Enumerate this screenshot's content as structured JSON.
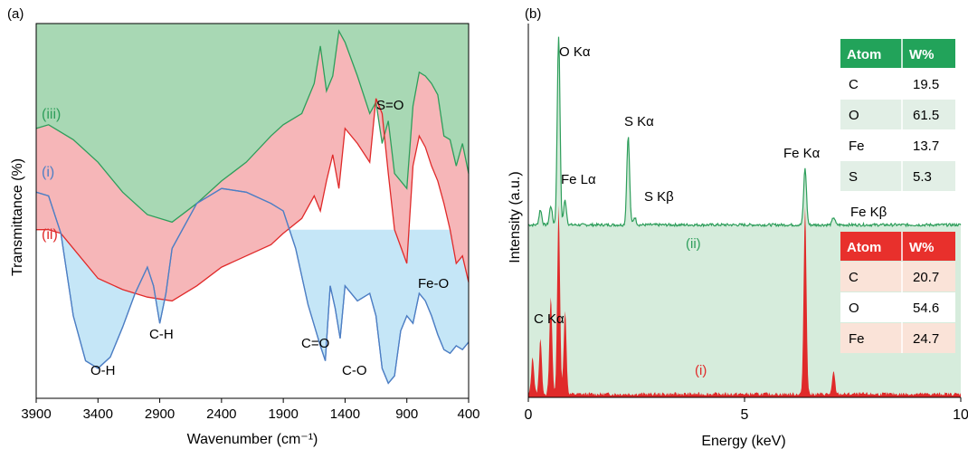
{
  "panel_a": {
    "label": "(a)",
    "xlabel": "Wavenumber (cm⁻¹)",
    "ylabel": "Transmittance (%)",
    "x_ticks": [
      "3900",
      "3400",
      "2900",
      "2400",
      "1900",
      "1400",
      "900",
      "400"
    ],
    "series_labels": [
      "(iii)",
      "(i)",
      "(ii)"
    ],
    "series_colors": [
      "#2e9e5b",
      "#4e7fc4",
      "#e02a2a"
    ],
    "annotations": [
      "S=O",
      "Fe-O",
      "C-H",
      "O-H",
      "C=O",
      "C-O"
    ]
  },
  "panel_b": {
    "label": "(b)",
    "xlabel": "Energy (keV)",
    "ylabel": "Intensity (a.u.)",
    "x_ticks": [
      "0",
      "5",
      "10"
    ],
    "peak_labels": [
      "O Kα",
      "Fe Lα",
      "S Kα",
      "S Kβ",
      "Fe Kα",
      "Fe Kβ",
      "C Kα"
    ],
    "series_labels": [
      "(ii)",
      "(i)"
    ],
    "table_ii": {
      "header": [
        "Atom",
        "W%"
      ],
      "rows": [
        [
          "C",
          "19.5"
        ],
        [
          "O",
          "61.5"
        ],
        [
          "Fe",
          "13.7"
        ],
        [
          "S",
          "5.3"
        ]
      ]
    },
    "table_i": {
      "header": [
        "Atom",
        "W%"
      ],
      "rows": [
        [
          "C",
          "20.7"
        ],
        [
          "O",
          "54.6"
        ],
        [
          "Fe",
          "24.7"
        ]
      ]
    }
  },
  "chart_data": [
    {
      "type": "area",
      "xlabel": "Wavenumber (cm⁻¹)",
      "ylabel": "Transmittance (%)",
      "xlim": [
        3900,
        400
      ],
      "x_reversed": true,
      "series": [
        {
          "name": "(iii)",
          "color": "#2e9e5b",
          "x": [
            3900,
            3800,
            3600,
            3400,
            3200,
            3000,
            2800,
            2600,
            2400,
            2200,
            2000,
            1900,
            1750,
            1650,
            1600,
            1550,
            1500,
            1450,
            1400,
            1300,
            1200,
            1150,
            1100,
            1050,
            1000,
            900,
            850,
            800,
            750,
            700,
            650,
            600,
            550,
            500,
            450,
            400
          ],
          "y": [
            0.72,
            0.73,
            0.69,
            0.63,
            0.55,
            0.49,
            0.47,
            0.52,
            0.58,
            0.63,
            0.7,
            0.73,
            0.76,
            0.84,
            0.94,
            0.82,
            0.86,
            0.98,
            0.95,
            0.86,
            0.76,
            0.79,
            0.68,
            0.74,
            0.6,
            0.56,
            0.78,
            0.87,
            0.86,
            0.84,
            0.81,
            0.7,
            0.69,
            0.62,
            0.68,
            0.6
          ]
        },
        {
          "name": "(i)",
          "color": "#4e7fc4",
          "x": [
            3900,
            3800,
            3700,
            3600,
            3500,
            3400,
            3300,
            3200,
            3100,
            3000,
            2950,
            2900,
            2850,
            2800,
            2600,
            2400,
            2200,
            2000,
            1900,
            1800,
            1700,
            1600,
            1560,
            1520,
            1480,
            1440,
            1400,
            1300,
            1200,
            1150,
            1100,
            1050,
            1000,
            950,
            900,
            850,
            800,
            750,
            700,
            650,
            600,
            550,
            500,
            450,
            400
          ],
          "y": [
            0.55,
            0.54,
            0.44,
            0.22,
            0.1,
            0.08,
            0.11,
            0.19,
            0.28,
            0.35,
            0.3,
            0.2,
            0.28,
            0.4,
            0.52,
            0.56,
            0.55,
            0.52,
            0.5,
            0.4,
            0.25,
            0.14,
            0.1,
            0.3,
            0.24,
            0.16,
            0.3,
            0.26,
            0.28,
            0.22,
            0.08,
            0.04,
            0.06,
            0.18,
            0.22,
            0.2,
            0.28,
            0.26,
            0.22,
            0.17,
            0.13,
            0.12,
            0.14,
            0.13,
            0.15
          ]
        },
        {
          "name": "(ii)",
          "color": "#e02a2a",
          "x": [
            3900,
            3800,
            3700,
            3600,
            3400,
            3200,
            3000,
            2800,
            2600,
            2400,
            2200,
            2000,
            1900,
            1750,
            1650,
            1600,
            1550,
            1500,
            1450,
            1400,
            1300,
            1200,
            1150,
            1100,
            1050,
            1000,
            900,
            850,
            800,
            750,
            700,
            650,
            600,
            550,
            500,
            450,
            400
          ],
          "y": [
            0.45,
            0.45,
            0.44,
            0.4,
            0.32,
            0.29,
            0.27,
            0.26,
            0.3,
            0.35,
            0.38,
            0.41,
            0.44,
            0.48,
            0.54,
            0.5,
            0.58,
            0.65,
            0.56,
            0.72,
            0.68,
            0.63,
            0.8,
            0.76,
            0.6,
            0.45,
            0.36,
            0.62,
            0.7,
            0.67,
            0.62,
            0.58,
            0.52,
            0.45,
            0.36,
            0.38,
            0.31
          ]
        }
      ],
      "annotations": [
        "S=O",
        "Fe-O",
        "C-H",
        "O-H",
        "C=O",
        "C-O"
      ]
    },
    {
      "type": "area",
      "xlabel": "Energy (keV)",
      "ylabel": "Intensity (a.u.)",
      "xlim": [
        0,
        10
      ],
      "series": [
        {
          "name": "(ii)",
          "color": "#2e9e5b",
          "peaks": [
            {
              "x": 0.28,
              "h": 0.08
            },
            {
              "x": 0.52,
              "h": 0.1
            },
            {
              "x": 0.7,
              "h": 1.0
            },
            {
              "x": 0.85,
              "h": 0.13
            },
            {
              "x": 2.31,
              "h": 0.47
            },
            {
              "x": 2.46,
              "h": 0.04
            },
            {
              "x": 6.4,
              "h": 0.3
            },
            {
              "x": 7.06,
              "h": 0.04
            }
          ],
          "baseline": 0.0
        },
        {
          "name": "(i)",
          "color": "#e02a2a",
          "peaks": [
            {
              "x": 0.1,
              "h": 0.2
            },
            {
              "x": 0.28,
              "h": 0.3
            },
            {
              "x": 0.52,
              "h": 0.52
            },
            {
              "x": 0.7,
              "h": 1.0
            },
            {
              "x": 0.85,
              "h": 0.45
            },
            {
              "x": 6.4,
              "h": 1.0
            },
            {
              "x": 7.06,
              "h": 0.12
            }
          ],
          "baseline": 0.0
        }
      ],
      "peak_labels": [
        "O Kα",
        "Fe Lα",
        "S Kα",
        "S Kβ",
        "Fe Kα",
        "Fe Kβ",
        "C Kα"
      ]
    }
  ]
}
